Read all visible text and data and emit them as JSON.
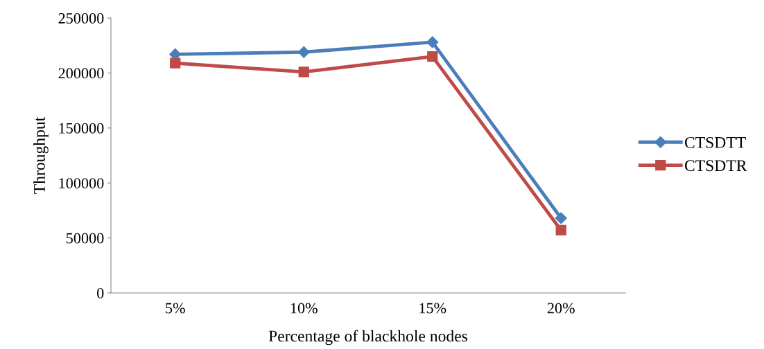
{
  "chart_data": {
    "type": "line",
    "xlabel": "Percentage of blackhole nodes",
    "ylabel": "Throughput",
    "categories": [
      "5%",
      "10%",
      "15%",
      "20%"
    ],
    "series": [
      {
        "name": "CTSDTT",
        "color": "#4a7ebb",
        "marker": "diamond",
        "values": [
          217000,
          219000,
          228000,
          68000
        ]
      },
      {
        "name": "CTSDTR",
        "color": "#be4b48",
        "marker": "square",
        "values": [
          209000,
          201000,
          215000,
          57000
        ]
      }
    ],
    "ylim": [
      0,
      250000
    ],
    "yticks": [
      0,
      50000,
      100000,
      150000,
      200000,
      250000
    ],
    "grid": false,
    "legend": "right",
    "line_style": "solid"
  }
}
